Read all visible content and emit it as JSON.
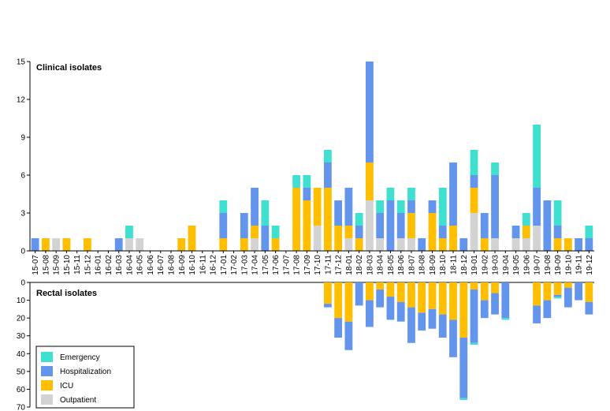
{
  "chart_data": [
    {
      "type": "bar",
      "stacked": true,
      "title": "Clinical isolates",
      "xlabel": "",
      "ylabel": "",
      "ylim": [
        0,
        15
      ],
      "yticks": [
        0,
        3,
        6,
        9,
        12,
        15
      ],
      "grid": false,
      "categories": [
        "15-07",
        "15-08",
        "15-09",
        "15-10",
        "15-11",
        "15-12",
        "16-01",
        "16-02",
        "16-03",
        "16-04",
        "16-05",
        "16-06",
        "16-07",
        "16-08",
        "16-09",
        "16-10",
        "16-11",
        "16-12",
        "17-01",
        "17-02",
        "17-03",
        "17-04",
        "17-05",
        "17-06",
        "17-07",
        "17-08",
        "17-09",
        "17-10",
        "17-11",
        "17-12",
        "18-01",
        "18-02",
        "18-03",
        "18-04",
        "18-05",
        "18-06",
        "18-07",
        "18-08",
        "18-09",
        "18-10",
        "18-11",
        "18-12",
        "19-01",
        "19-02",
        "19-03",
        "19-04",
        "19-05",
        "19-06",
        "19-07",
        "19-08",
        "19-09",
        "19-10",
        "19-11",
        "19-12"
      ],
      "series": [
        {
          "name": "Outpatient",
          "color": "#d3d3d3",
          "values": [
            0,
            0,
            1,
            0,
            0,
            0,
            0,
            0,
            0,
            1,
            1,
            0,
            0,
            0,
            0,
            0,
            0,
            0,
            0,
            0,
            0,
            1,
            0,
            0,
            0,
            0,
            0,
            2,
            0,
            0,
            1,
            0,
            4,
            1,
            0,
            1,
            1,
            0,
            0,
            0,
            0,
            0,
            3,
            0,
            1,
            0,
            1,
            1,
            2,
            0,
            0,
            0,
            0,
            0
          ]
        },
        {
          "name": "ICU",
          "color": "#ffbe00",
          "values": [
            0,
            1,
            0,
            1,
            0,
            1,
            0,
            0,
            0,
            0,
            0,
            0,
            0,
            0,
            1,
            2,
            0,
            0,
            1,
            0,
            1,
            1,
            0,
            1,
            0,
            5,
            4,
            3,
            5,
            2,
            1,
            1,
            3,
            0,
            0,
            0,
            2,
            0,
            3,
            1,
            2,
            0,
            2,
            1,
            0,
            0,
            0,
            1,
            0,
            0,
            1,
            1,
            0,
            0
          ]
        },
        {
          "name": "Hospitalization",
          "color": "#6495ed",
          "values": [
            1,
            0,
            0,
            0,
            0,
            0,
            0,
            0,
            1,
            0,
            0,
            0,
            0,
            0,
            0,
            0,
            0,
            0,
            2,
            0,
            2,
            3,
            2,
            0,
            0,
            0,
            1,
            0,
            2,
            2,
            3,
            1,
            8,
            2,
            4,
            2,
            1,
            1,
            1,
            1,
            5,
            1,
            1,
            2,
            5,
            0,
            1,
            0,
            3,
            4,
            1,
            0,
            1,
            1
          ]
        },
        {
          "name": "Emergency",
          "color": "#40e0d0",
          "values": [
            0,
            0,
            0,
            0,
            0,
            0,
            0,
            0,
            0,
            1,
            0,
            0,
            0,
            0,
            0,
            0,
            0,
            0,
            1,
            0,
            0,
            0,
            2,
            1,
            0,
            1,
            1,
            0,
            1,
            0,
            0,
            1,
            0,
            1,
            1,
            1,
            1,
            0,
            0,
            3,
            0,
            0,
            2,
            0,
            1,
            0,
            0,
            1,
            5,
            0,
            2,
            0,
            0,
            1
          ]
        }
      ]
    },
    {
      "type": "bar",
      "stacked": true,
      "orientation": "downward",
      "title": "Rectal isolates",
      "xlabel": "",
      "ylabel": "",
      "ylim": [
        0,
        70
      ],
      "yticks": [
        0,
        10,
        20,
        30,
        40,
        50,
        60,
        70
      ],
      "grid": false,
      "categories": [
        "15-07",
        "15-08",
        "15-09",
        "15-10",
        "15-11",
        "15-12",
        "16-01",
        "16-02",
        "16-03",
        "16-04",
        "16-05",
        "16-06",
        "16-07",
        "16-08",
        "16-09",
        "16-10",
        "16-11",
        "16-12",
        "17-01",
        "17-02",
        "17-03",
        "17-04",
        "17-05",
        "17-06",
        "17-07",
        "17-08",
        "17-09",
        "17-10",
        "17-11",
        "17-12",
        "18-01",
        "18-02",
        "18-03",
        "18-04",
        "18-05",
        "18-06",
        "18-07",
        "18-08",
        "18-09",
        "18-10",
        "18-11",
        "18-12",
        "19-01",
        "19-02",
        "19-03",
        "19-04",
        "19-05",
        "19-06",
        "19-07",
        "19-08",
        "19-09",
        "19-10",
        "19-11",
        "19-12"
      ],
      "series": [
        {
          "name": "ICU",
          "color": "#ffbe00",
          "values": [
            0,
            0,
            0,
            0,
            0,
            0,
            0,
            0,
            0,
            0,
            0,
            0,
            0,
            0,
            0,
            0,
            0,
            0,
            0,
            0,
            0,
            0,
            0,
            0,
            0,
            0,
            0,
            0,
            12,
            20,
            22,
            0,
            10,
            4,
            8,
            11,
            14,
            17,
            15,
            18,
            21,
            31,
            4,
            10,
            6,
            0,
            0,
            0,
            13,
            10,
            7,
            3,
            0,
            11
          ]
        },
        {
          "name": "Hospitalization",
          "color": "#6495ed",
          "values": [
            0,
            0,
            0,
            0,
            0,
            0,
            0,
            0,
            0,
            0,
            0,
            0,
            0,
            0,
            0,
            0,
            0,
            0,
            0,
            0,
            0,
            0,
            0,
            0,
            0,
            0,
            0,
            0,
            2,
            11,
            16,
            13,
            15,
            10,
            13,
            11,
            20,
            10,
            11,
            13,
            21,
            34,
            30,
            10,
            12,
            20,
            0,
            0,
            10,
            10,
            1,
            11,
            10,
            7
          ]
        },
        {
          "name": "Emergency",
          "color": "#40e0d0",
          "values": [
            0,
            0,
            0,
            0,
            0,
            0,
            0,
            0,
            0,
            0,
            0,
            0,
            0,
            0,
            0,
            0,
            0,
            0,
            0,
            0,
            0,
            0,
            0,
            0,
            0,
            0,
            0,
            0,
            0,
            0,
            0,
            0,
            0,
            0,
            0,
            0,
            0,
            0,
            0,
            0,
            0,
            1,
            1,
            0,
            0,
            1,
            0,
            0,
            0,
            0,
            1,
            0,
            0,
            0
          ]
        }
      ]
    }
  ],
  "legend": {
    "placement": "bottom-left",
    "items": [
      {
        "label": "Emergency",
        "color": "#40e0d0"
      },
      {
        "label": "Hospitalization",
        "color": "#6495ed"
      },
      {
        "label": "ICU",
        "color": "#ffbe00"
      },
      {
        "label": "Outpatient",
        "color": "#d3d3d3"
      }
    ]
  }
}
